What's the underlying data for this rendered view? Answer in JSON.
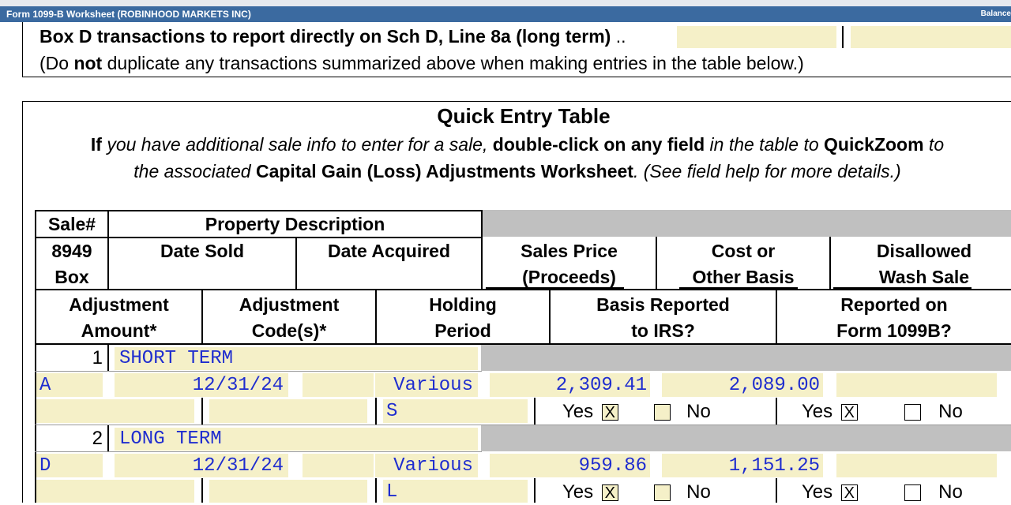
{
  "window": {
    "title": "Form 1099-B Worksheet (ROBINHOOD MARKETS INC)",
    "right_label": "Balance"
  },
  "box_d": {
    "label": "Box D transactions to report directly on Sch D, Line 8a (long term)",
    "dots": "..",
    "note_pre": "(Do ",
    "note_bold": "not",
    "note_post": " duplicate any transactions summarized above when making entries in the table below.)"
  },
  "quick_entry": {
    "title": "Quick Entry Table",
    "line1_b1": "If",
    "line1_t1": " you have additional sale info to enter for a sale, ",
    "line1_b2": "double-click on any field",
    "line1_t2": " in the table to ",
    "line1_b3": "QuickZoom",
    "line1_t3": " to",
    "line2_t1": "the associated ",
    "line2_b1": "Capital Gain (Loss) Adjustments Worksheet",
    "line2_t2": ". (See field help for more details.)"
  },
  "headers": {
    "sale_num": "Sale#",
    "property_description": "Property Description",
    "box_8949_l1": "8949",
    "box_8949_l2": "Box",
    "date_sold": "Date Sold",
    "date_acquired": "Date Acquired",
    "sales_price_l1": "Sales Price",
    "sales_price_l2": "(Proceeds)",
    "cost_l1": "Cost or",
    "cost_l2": "Other Basis",
    "wash_l1": "Disallowed",
    "wash_l2": "Wash Sale",
    "adj_amount_l1": "Adjustment",
    "adj_amount_l2": "Amount*",
    "adj_code_l1": "Adjustment",
    "adj_code_l2": "Code(s)*",
    "holding_l1": "Holding",
    "holding_l2": "Period",
    "basis_l1": "Basis Reported",
    "basis_l2": "to IRS?",
    "form_l1": "Reported on",
    "form_l2": "Form 1099B?"
  },
  "transactions": [
    {
      "num": "1",
      "description": "SHORT TERM",
      "box": "A",
      "date_sold": "12/31/24",
      "date_acquired": "",
      "acquired_text": "Various",
      "proceeds": "2,309.41",
      "cost": "2,089.00",
      "wash": "",
      "holding": "S",
      "basis_yes": "Yes",
      "basis_yes_mark": "X",
      "basis_no": "No",
      "basis_no_mark": "",
      "form_yes": "Yes",
      "form_yes_mark": "X",
      "form_no": "No",
      "form_no_mark": ""
    },
    {
      "num": "2",
      "description": "LONG TERM",
      "box": "D",
      "date_sold": "12/31/24",
      "date_acquired": "",
      "acquired_text": "Various",
      "proceeds": "959.86",
      "cost": "1,151.25",
      "wash": "",
      "holding": "L",
      "basis_yes": "Yes",
      "basis_yes_mark": "X",
      "basis_no": "No",
      "basis_no_mark": "",
      "form_yes": "Yes",
      "form_yes_mark": "X",
      "form_no": "No",
      "form_no_mark": ""
    }
  ]
}
